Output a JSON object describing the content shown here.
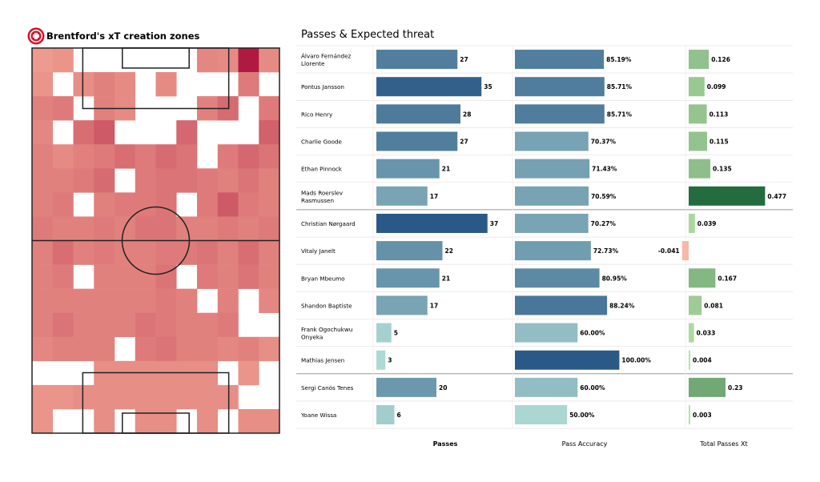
{
  "heatmap": {
    "title": "Brentford's xT creation zones",
    "logo_icon": "brentford-crest-icon",
    "chart_data": {
      "type": "heatmap",
      "title": "Brentford's xT creation zones",
      "rows": 16,
      "cols": 12,
      "values": [
        [
          0.2,
          0.24,
          0,
          0,
          0,
          0,
          0,
          0,
          0.32,
          0.3,
          1.0,
          0.3
        ],
        [
          0.24,
          0,
          0.28,
          0.36,
          0.3,
          0,
          0.3,
          0,
          0,
          0,
          0.4,
          0
        ],
        [
          0.36,
          0.4,
          0,
          0.36,
          0.3,
          0,
          0,
          0,
          0.36,
          0.5,
          0,
          0.4
        ],
        [
          0.32,
          0,
          0.48,
          0.6,
          0,
          0,
          0,
          0.52,
          0,
          0,
          0,
          0.56
        ],
        [
          0.36,
          0.3,
          0.36,
          0.4,
          0.48,
          0.4,
          0.5,
          0.44,
          0,
          0.4,
          0.52,
          0.44
        ],
        [
          0.36,
          0.36,
          0.4,
          0.5,
          0,
          0.4,
          0.44,
          0.44,
          0.4,
          0.36,
          0.44,
          0.36
        ],
        [
          0.36,
          0.4,
          0,
          0.36,
          0.4,
          0.4,
          0.44,
          0,
          0.4,
          0.6,
          0.4,
          0.36
        ],
        [
          0.4,
          0.36,
          0.36,
          0.4,
          0.36,
          0.44,
          0.44,
          0.36,
          0.36,
          0.4,
          0.36,
          0.4
        ],
        [
          0.36,
          0.48,
          0.36,
          0.4,
          0.36,
          0.36,
          0.4,
          0.4,
          0.44,
          0.36,
          0.48,
          0.36
        ],
        [
          0.36,
          0.4,
          0,
          0.36,
          0.36,
          0.36,
          0.44,
          0,
          0.4,
          0.36,
          0.44,
          0.36
        ],
        [
          0.36,
          0.36,
          0.36,
          0.36,
          0.36,
          0.36,
          0.4,
          0.36,
          0,
          0.36,
          0,
          0.32
        ],
        [
          0.36,
          0.44,
          0.36,
          0.36,
          0.36,
          0.44,
          0.4,
          0.36,
          0.36,
          0.4,
          0,
          0
        ],
        [
          0.32,
          0.36,
          0.36,
          0.36,
          0,
          0.4,
          0.44,
          0.36,
          0.36,
          0.32,
          0.36,
          0.28
        ],
        [
          0,
          0,
          0,
          0.28,
          0.28,
          0.28,
          0.28,
          0.28,
          0.28,
          0,
          0.24,
          0
        ],
        [
          0.24,
          0.24,
          0.28,
          0.28,
          0.28,
          0.28,
          0.28,
          0.28,
          0.28,
          0.28,
          0,
          0
        ],
        [
          0.24,
          0,
          0,
          0.28,
          0,
          0.28,
          0.28,
          0,
          0.28,
          0,
          0.28,
          0.28
        ]
      ],
      "color_low": "#fcbba1",
      "color_high": "#b01a40"
    }
  },
  "table": {
    "title": "Passes & Expected threat",
    "chart_data": {
      "type": "bar",
      "categories": [
        "Álvaro Fernández Llorente",
        "Pontus Jansson",
        "Rico Henry",
        "Charlie Goode",
        "Ethan Pinnock",
        "Mads Roerslev Rasmussen",
        "Christian Nørgaard",
        "Vitaly Janelt",
        "Bryan Mbeumo",
        "Shandon Baptiste",
        "Frank Ogochukwu Onyeka",
        "Mathias Jensen",
        "Sergi Canós Tenes",
        "Yoane Wissa"
      ],
      "category_lines": [
        [
          "Álvaro Fernández",
          "Llorente"
        ],
        [
          "Pontus Jansson"
        ],
        [
          "Rico Henry"
        ],
        [
          "Charlie Goode"
        ],
        [
          "Ethan Pinnock"
        ],
        [
          "Mads Roerslev",
          "Rasmussen"
        ],
        [
          "Christian Nørgaard"
        ],
        [
          "Vitaly Janelt"
        ],
        [
          "Bryan Mbeumo"
        ],
        [
          "Shandon Baptiste"
        ],
        [
          "Frank Ogochukwu",
          "Onyeka"
        ],
        [
          "Mathias Jensen"
        ],
        [
          "Sergi Canós Tenes"
        ],
        [
          "Yoane Wissa"
        ]
      ],
      "series": [
        {
          "name": "Passes",
          "values": [
            27,
            35,
            28,
            27,
            21,
            17,
            37,
            22,
            21,
            17,
            5,
            3,
            20,
            6
          ],
          "labels": [
            "27",
            "35",
            "28",
            "27",
            "21",
            "17",
            "37",
            "22",
            "21",
            "17",
            "5",
            "3",
            "20",
            "6"
          ],
          "max": 40
        },
        {
          "name": "Pass Accuracy",
          "values": [
            85.19,
            85.71,
            85.71,
            70.37,
            71.43,
            70.59,
            70.27,
            72.73,
            80.95,
            88.24,
            60.0,
            100.0,
            60.0,
            50.0
          ],
          "labels": [
            "85.19%",
            "85.71%",
            "85.71%",
            "70.37%",
            "71.43%",
            "70.59%",
            "70.27%",
            "72.73%",
            "80.95%",
            "88.24%",
            "60.00%",
            "100.00%",
            "60.00%",
            "50.00%"
          ],
          "max": 115
        },
        {
          "name": "Total Passes Xt",
          "values": [
            0.126,
            0.099,
            0.113,
            0.115,
            0.135,
            0.477,
            0.039,
            -0.041,
            0.167,
            0.081,
            0.033,
            0.004,
            0.23,
            0.003
          ],
          "labels": [
            "0.126",
            "0.099",
            "0.113",
            "0.115",
            "0.135",
            "0.477",
            "0.039",
            "-0.041",
            "0.167",
            "0.081",
            "0.033",
            "0.004",
            "0.23",
            "0.003"
          ],
          "max": 0.55
        }
      ],
      "group_breaks_after": [
        5,
        11
      ],
      "colors": {
        "teal_low": "#b9e3da",
        "teal_high": "#2b5987",
        "green_low": "#b8e0a8",
        "green_high": "#236b3c",
        "negative": "#f7b8a5"
      }
    }
  }
}
